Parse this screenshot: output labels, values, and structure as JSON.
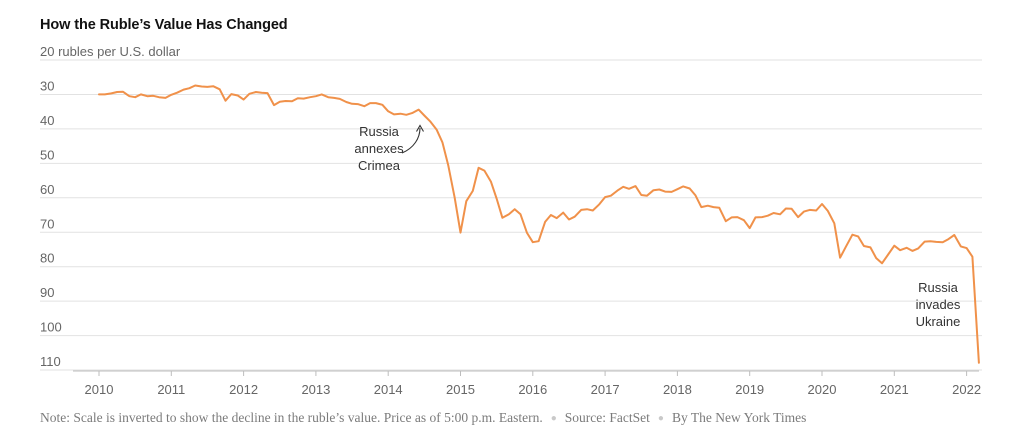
{
  "chart_data": {
    "type": "line",
    "title": "How the Ruble’s Value Has Changed",
    "ylabel": "rubles per U.S. dollar",
    "y_inverted": true,
    "ylim": [
      20,
      113
    ],
    "yticks": [
      20,
      30,
      40,
      50,
      60,
      70,
      80,
      90,
      100,
      110
    ],
    "ytick_labels": [
      "20 rubles per U.S. dollar",
      "30",
      "40",
      "50",
      "60",
      "70",
      "80",
      "90",
      "100",
      "110"
    ],
    "xlim": [
      2009.85,
      2022.25
    ],
    "xticks": [
      2010,
      2011,
      2012,
      2013,
      2014,
      2015,
      2016,
      2017,
      2018,
      2019,
      2020,
      2021,
      2022
    ],
    "xtick_labels": [
      "2010",
      "2011",
      "2012",
      "2013",
      "2014",
      "2015",
      "2016",
      "2017",
      "2018",
      "2019",
      "2020",
      "2021",
      "2022"
    ],
    "grid": true,
    "line_color": "#f0914a",
    "series": [
      {
        "name": "",
        "x": [
          2010.0,
          2010.08,
          2010.17,
          2010.25,
          2010.33,
          2010.42,
          2010.5,
          2010.58,
          2010.67,
          2010.75,
          2010.83,
          2010.92,
          2011.0,
          2011.08,
          2011.17,
          2011.25,
          2011.33,
          2011.42,
          2011.5,
          2011.58,
          2011.67,
          2011.75,
          2011.83,
          2011.92,
          2012.0,
          2012.08,
          2012.17,
          2012.25,
          2012.33,
          2012.42,
          2012.5,
          2012.58,
          2012.67,
          2012.75,
          2012.83,
          2012.92,
          2013.0,
          2013.08,
          2013.17,
          2013.25,
          2013.33,
          2013.42,
          2013.5,
          2013.58,
          2013.67,
          2013.75,
          2013.83,
          2013.92,
          2014.0,
          2014.08,
          2014.17,
          2014.25,
          2014.33,
          2014.42,
          2014.5,
          2014.58,
          2014.67,
          2014.75,
          2014.83,
          2014.92,
          2015.0,
          2015.08,
          2015.17,
          2015.25,
          2015.33,
          2015.42,
          2015.5,
          2015.58,
          2015.67,
          2015.75,
          2015.83,
          2015.92,
          2016.0,
          2016.08,
          2016.17,
          2016.25,
          2016.33,
          2016.42,
          2016.5,
          2016.58,
          2016.67,
          2016.75,
          2016.83,
          2016.92,
          2017.0,
          2017.08,
          2017.17,
          2017.25,
          2017.33,
          2017.42,
          2017.5,
          2017.58,
          2017.67,
          2017.75,
          2017.83,
          2017.92,
          2018.0,
          2018.08,
          2018.17,
          2018.25,
          2018.33,
          2018.42,
          2018.5,
          2018.58,
          2018.67,
          2018.75,
          2018.83,
          2018.92,
          2019.0,
          2019.08,
          2019.17,
          2019.25,
          2019.33,
          2019.42,
          2019.5,
          2019.58,
          2019.67,
          2019.75,
          2019.83,
          2019.92,
          2020.0,
          2020.08,
          2020.17,
          2020.25,
          2020.33,
          2020.42,
          2020.5,
          2020.58,
          2020.67,
          2020.75,
          2020.83,
          2020.92,
          2021.0,
          2021.08,
          2021.17,
          2021.25,
          2021.33,
          2021.42,
          2021.5,
          2021.58,
          2021.67,
          2021.75,
          2021.83,
          2021.92,
          2022.0,
          2022.08,
          2022.17
        ],
        "values": [
          30.0,
          30.0,
          29.7,
          29.3,
          29.2,
          30.5,
          30.8,
          30.0,
          30.5,
          30.4,
          30.8,
          31.0,
          30.1,
          29.5,
          28.6,
          28.2,
          27.4,
          27.7,
          27.8,
          27.6,
          28.5,
          31.8,
          29.9,
          30.3,
          31.5,
          29.8,
          29.3,
          29.5,
          29.6,
          33.1,
          32.1,
          31.9,
          32.0,
          31.1,
          31.2,
          30.8,
          30.5,
          30.0,
          30.8,
          31.0,
          31.3,
          32.2,
          32.7,
          32.8,
          33.4,
          32.5,
          32.5,
          33.0,
          34.9,
          35.8,
          35.6,
          35.9,
          35.4,
          34.4,
          36.1,
          37.8,
          40.2,
          43.9,
          50.5,
          60.0,
          70.1,
          61.0,
          58.0,
          51.3,
          52.1,
          55.3,
          60.2,
          65.8,
          64.8,
          63.3,
          64.8,
          70.2,
          72.9,
          72.6,
          67.0,
          65.0,
          65.9,
          64.3,
          66.3,
          65.5,
          63.5,
          63.3,
          63.7,
          61.9,
          59.8,
          59.4,
          57.9,
          56.8,
          57.4,
          56.6,
          59.2,
          59.4,
          57.8,
          57.6,
          58.2,
          58.3,
          57.5,
          56.7,
          57.3,
          59.3,
          62.7,
          62.3,
          62.7,
          62.9,
          66.8,
          65.7,
          65.6,
          66.5,
          68.8,
          65.7,
          65.6,
          65.2,
          64.4,
          64.8,
          63.1,
          63.2,
          65.6,
          64.0,
          63.5,
          63.7,
          61.8,
          63.8,
          67.4,
          77.4,
          74.2,
          70.7,
          71.2,
          74.0,
          74.4,
          77.5,
          79.0,
          76.3,
          73.9,
          75.2,
          74.5,
          75.4,
          74.7,
          72.7,
          72.6,
          72.8,
          72.9,
          72.0,
          70.8,
          74.1,
          74.6,
          77.1,
          107.9
        ]
      }
    ],
    "annotations": [
      {
        "lines": [
          "Russia",
          "annexes",
          "Crimea"
        ]
      },
      {
        "lines": [
          "Russia",
          "invades",
          "Ukraine"
        ]
      }
    ]
  },
  "footer": {
    "note": "Note: Scale is inverted to show the decline in the ruble’s value. Price as of 5:00 p.m. Eastern.",
    "source": "Source: FactSet",
    "credit": "By The New York Times"
  }
}
